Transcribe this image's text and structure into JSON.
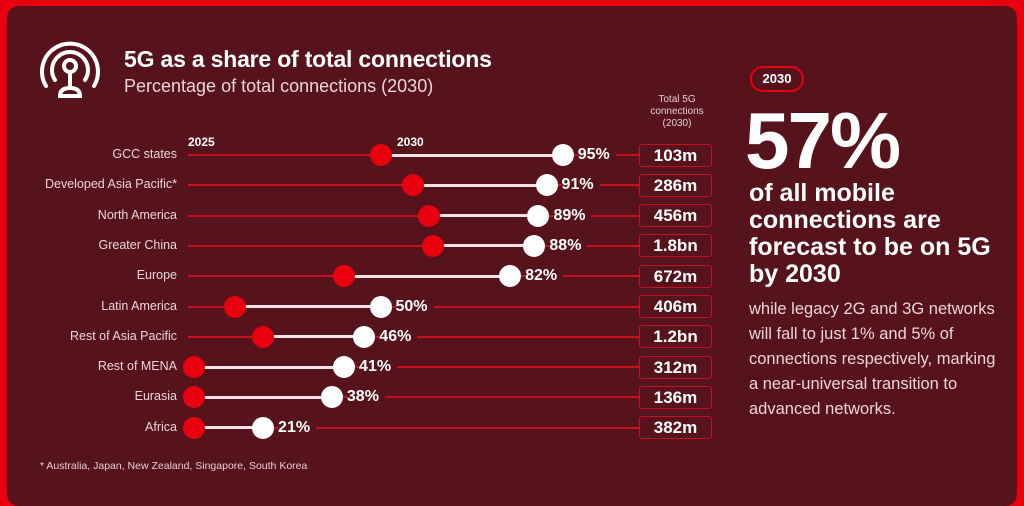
{
  "header": {
    "title": "5G as a share of total connections",
    "subtitle": "Percentage of total connections (2030)"
  },
  "column_header": "Total 5G connections (2030)",
  "legend": {
    "start_year": "2025",
    "end_year": "2030"
  },
  "colors": {
    "accent": "#e8000f",
    "background": "#56131c",
    "end_dot": "#ffffff"
  },
  "chart_data": {
    "type": "dumbbell",
    "title": "5G as a share of total connections",
    "subtitle": "Percentage of total connections (2030)",
    "xlabel": "",
    "ylabel": "",
    "xlim": [
      0,
      100
    ],
    "series_names": [
      "2025",
      "2030"
    ],
    "categories": [
      "GCC states",
      "Developed Asia Pacific*",
      "North America",
      "Greater China",
      "Europe",
      "Latin America",
      "Rest of Asia Pacific",
      "Rest of MENA",
      "Eurasia",
      "Africa"
    ],
    "series": [
      {
        "name": "2025",
        "values": [
          50,
          58,
          62,
          63,
          41,
          14,
          21,
          4,
          4,
          4
        ]
      },
      {
        "name": "2030",
        "values": [
          95,
          91,
          89,
          88,
          82,
          50,
          46,
          41,
          38,
          21
        ]
      }
    ],
    "labels_2030": [
      "95%",
      "91%",
      "89%",
      "88%",
      "82%",
      "50%",
      "46%",
      "41%",
      "38%",
      "21%"
    ],
    "total_5g_connections_2030": [
      "103m",
      "286m",
      "456m",
      "1.8bn",
      "672m",
      "406m",
      "1.2bn",
      "312m",
      "136m",
      "382m"
    ]
  },
  "rows": [
    {
      "label": "GCC states",
      "pct": "95%",
      "total": "103m"
    },
    {
      "label": "Developed Asia Pacific*",
      "pct": "91%",
      "total": "286m"
    },
    {
      "label": "North America",
      "pct": "89%",
      "total": "456m"
    },
    {
      "label": "Greater China",
      "pct": "88%",
      "total": "1.8bn"
    },
    {
      "label": "Europe",
      "pct": "82%",
      "total": "672m"
    },
    {
      "label": "Latin America",
      "pct": "50%",
      "total": "406m"
    },
    {
      "label": "Rest of Asia Pacific",
      "pct": "46%",
      "total": "1.2bn"
    },
    {
      "label": "Rest of MENA",
      "pct": "41%",
      "total": "312m"
    },
    {
      "label": "Eurasia",
      "pct": "38%",
      "total": "136m"
    },
    {
      "label": "Africa",
      "pct": "21%",
      "total": "382m"
    }
  ],
  "footnote": "* Australia, Japan, New Zealand, Singapore, South Korea",
  "highlight": {
    "badge": "2030",
    "big_number": "57%",
    "headline": "of all mobile connections are forecast to be on 5G by 2030",
    "body": "while legacy 2G and 3G networks will fall to just 1% and 5% of connections respectively, marking a near-universal transition to advanced networks."
  },
  "icons": {
    "header_icon": "broadcast-antenna-icon"
  }
}
